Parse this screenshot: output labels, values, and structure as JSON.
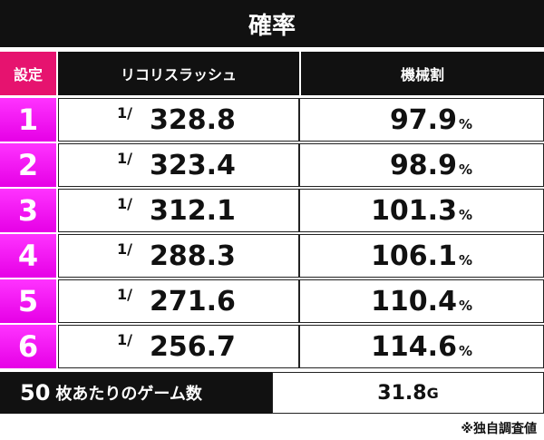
{
  "title": "確率",
  "header": {
    "setting": "設定",
    "probability": "リコリスラッシュ",
    "payout": "機械割"
  },
  "rows": [
    {
      "setting": "1",
      "prefix": "1/",
      "probability": "328.8",
      "payout": "97.9",
      "unit": "%"
    },
    {
      "setting": "2",
      "prefix": "1/",
      "probability": "323.4",
      "payout": "98.9",
      "unit": "%"
    },
    {
      "setting": "3",
      "prefix": "1/",
      "probability": "312.1",
      "payout": "101.3",
      "unit": "%"
    },
    {
      "setting": "4",
      "prefix": "1/",
      "probability": "288.3",
      "payout": "106.1",
      "unit": "%"
    },
    {
      "setting": "5",
      "prefix": "1/",
      "probability": "271.6",
      "payout": "110.4",
      "unit": "%"
    },
    {
      "setting": "6",
      "prefix": "1/",
      "probability": "256.7",
      "payout": "114.6",
      "unit": "%"
    }
  ],
  "footer": {
    "count": "50",
    "label": "枚あたりのゲーム数",
    "value": "31.8",
    "unit": "G"
  },
  "note": "※独自調査値"
}
